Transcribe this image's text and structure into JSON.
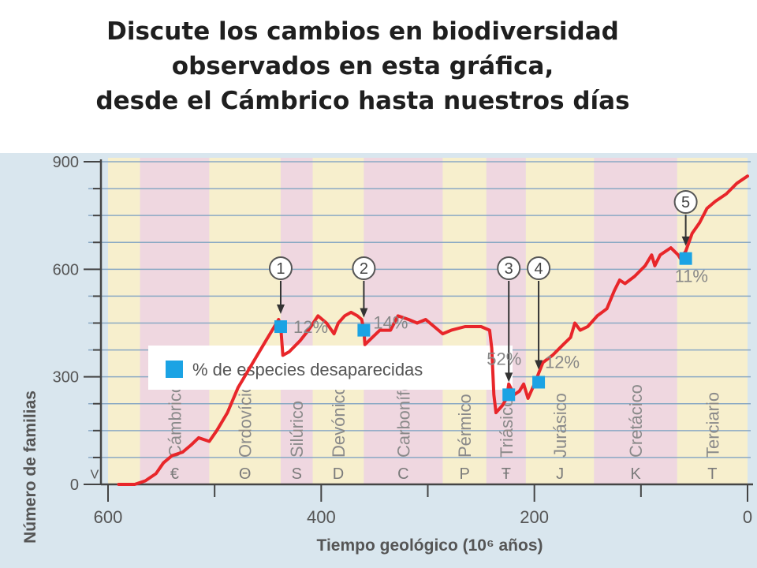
{
  "slide": {
    "title_lines": [
      "Discute los cambios en biodiversidad",
      "observados en esta gráfica,",
      "desde el Cámbrico hasta nuestros días"
    ]
  },
  "chart_data": {
    "type": "line",
    "title": "",
    "xlabel": "Tiempo geológico (10⁶ años)",
    "ylabel": "Número de familias",
    "xlim": [
      600,
      0
    ],
    "ylim": [
      0,
      900
    ],
    "x_ticks": [
      "600",
      "400",
      "200",
      "0"
    ],
    "y_ticks": [
      "900",
      "600",
      "300",
      "0"
    ],
    "grid": true,
    "legend": {
      "label": "% de especies desaparecidas",
      "placement": "top-left",
      "color": "#1ba3e4"
    },
    "colors": {
      "line": "#e8262a",
      "marker": "#1ba3e4",
      "period_a": "#f7efcd",
      "period_b": "#efd7e0",
      "panel": "#d9e6ee",
      "grid": "#8aa9c4"
    },
    "periods": [
      {
        "name": "Cámbrico",
        "symbol": "€",
        "start": 570,
        "end": 505
      },
      {
        "name": "Ordovícico",
        "symbol": "Θ",
        "start": 505,
        "end": 438
      },
      {
        "name": "Silúrico",
        "symbol": "S",
        "start": 438,
        "end": 408
      },
      {
        "name": "Devónico",
        "symbol": "D",
        "start": 408,
        "end": 360
      },
      {
        "name": "Carbonífero",
        "symbol": "C",
        "start": 360,
        "end": 286
      },
      {
        "name": "Pérmico",
        "symbol": "P",
        "start": 286,
        "end": 245
      },
      {
        "name": "Triásico",
        "symbol": "Ŧ",
        "start": 245,
        "end": 208
      },
      {
        "name": "Jurásico",
        "symbol": "J",
        "start": 208,
        "end": 144
      },
      {
        "name": "Cretácico",
        "symbol": "K",
        "start": 144,
        "end": 66
      },
      {
        "name": "Terciario",
        "symbol": "T",
        "start": 66,
        "end": 0
      }
    ],
    "series": [
      {
        "values": [
          [
            590,
            -20
          ],
          [
            575,
            -10
          ],
          [
            565,
            10
          ],
          [
            555,
            30
          ],
          [
            548,
            60
          ],
          [
            540,
            80
          ],
          [
            530,
            90
          ],
          [
            522,
            110
          ],
          [
            515,
            130
          ],
          [
            505,
            120
          ],
          [
            498,
            150
          ],
          [
            488,
            200
          ],
          [
            478,
            270
          ],
          [
            468,
            320
          ],
          [
            460,
            360
          ],
          [
            452,
            400
          ],
          [
            446,
            430
          ],
          [
            440,
            460
          ],
          [
            438,
            440
          ],
          [
            436,
            360
          ],
          [
            430,
            370
          ],
          [
            420,
            400
          ],
          [
            412,
            430
          ],
          [
            403,
            470
          ],
          [
            395,
            450
          ],
          [
            388,
            420
          ],
          [
            384,
            450
          ],
          [
            378,
            470
          ],
          [
            372,
            480
          ],
          [
            366,
            470
          ],
          [
            362,
            460
          ],
          [
            360,
            430
          ],
          [
            359,
            390
          ],
          [
            352,
            410
          ],
          [
            345,
            430
          ],
          [
            335,
            430
          ],
          [
            328,
            470
          ],
          [
            318,
            460
          ],
          [
            310,
            450
          ],
          [
            302,
            460
          ],
          [
            294,
            440
          ],
          [
            286,
            420
          ],
          [
            278,
            430
          ],
          [
            265,
            440
          ],
          [
            250,
            440
          ],
          [
            242,
            430
          ],
          [
            240,
            380
          ],
          [
            238,
            250
          ],
          [
            236,
            200
          ],
          [
            230,
            220
          ],
          [
            226,
            240
          ],
          [
            224,
            280
          ],
          [
            219,
            250
          ],
          [
            214,
            260
          ],
          [
            210,
            280
          ],
          [
            206,
            240
          ],
          [
            200,
            280
          ],
          [
            192,
            340
          ],
          [
            183,
            360
          ],
          [
            173,
            390
          ],
          [
            166,
            410
          ],
          [
            162,
            450
          ],
          [
            157,
            430
          ],
          [
            150,
            440
          ],
          [
            141,
            470
          ],
          [
            132,
            490
          ],
          [
            125,
            540
          ],
          [
            120,
            570
          ],
          [
            115,
            560
          ],
          [
            106,
            580
          ],
          [
            96,
            610
          ],
          [
            90,
            640
          ],
          [
            87,
            610
          ],
          [
            82,
            640
          ],
          [
            72,
            660
          ],
          [
            65,
            640
          ],
          [
            63,
            630
          ],
          [
            58,
            650
          ],
          [
            52,
            700
          ],
          [
            45,
            730
          ],
          [
            38,
            770
          ],
          [
            30,
            790
          ],
          [
            20,
            810
          ],
          [
            10,
            840
          ],
          [
            0,
            860
          ]
        ]
      }
    ],
    "extinctions": [
      {
        "event": "1",
        "x": 438,
        "y": 440,
        "percent": "12%"
      },
      {
        "event": "2",
        "x": 360,
        "y": 430,
        "percent": "14%"
      },
      {
        "event": "3",
        "x": 224,
        "y": 250,
        "percent": "52%"
      },
      {
        "event": "4",
        "x": 196,
        "y": 285,
        "percent": "12%"
      },
      {
        "event": "5",
        "x": 58,
        "y": 630,
        "percent": "11%"
      }
    ]
  }
}
